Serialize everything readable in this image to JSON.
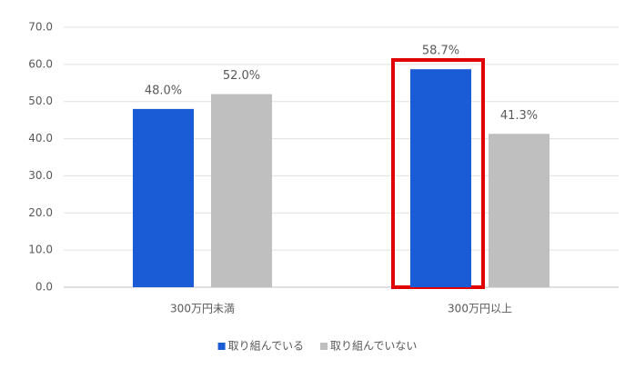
{
  "chart_data": {
    "type": "bar",
    "categories": [
      "300万円未満",
      "300万円以上"
    ],
    "series": [
      {
        "name": "取り組んでいる",
        "color": "#1a5bd6",
        "values": [
          48.0,
          58.7
        ],
        "value_labels": [
          "48.0%",
          "58.7%"
        ]
      },
      {
        "name": "取り組んでいない",
        "color": "#bfbfbf",
        "values": [
          52.0,
          41.3
        ],
        "value_labels": [
          "52.0%",
          "41.3%"
        ]
      }
    ],
    "ylim": [
      0,
      70
    ],
    "yticks": [
      {
        "value": 0,
        "label": "0.0"
      },
      {
        "value": 10,
        "label": "10.0"
      },
      {
        "value": 20,
        "label": "20.0"
      },
      {
        "value": 30,
        "label": "30.0"
      },
      {
        "value": 40,
        "label": "40.0"
      },
      {
        "value": 50,
        "label": "50.0"
      },
      {
        "value": 60,
        "label": "60.0"
      },
      {
        "value": 70,
        "label": "70.0"
      }
    ],
    "grid": true,
    "legend": "bottom"
  }
}
